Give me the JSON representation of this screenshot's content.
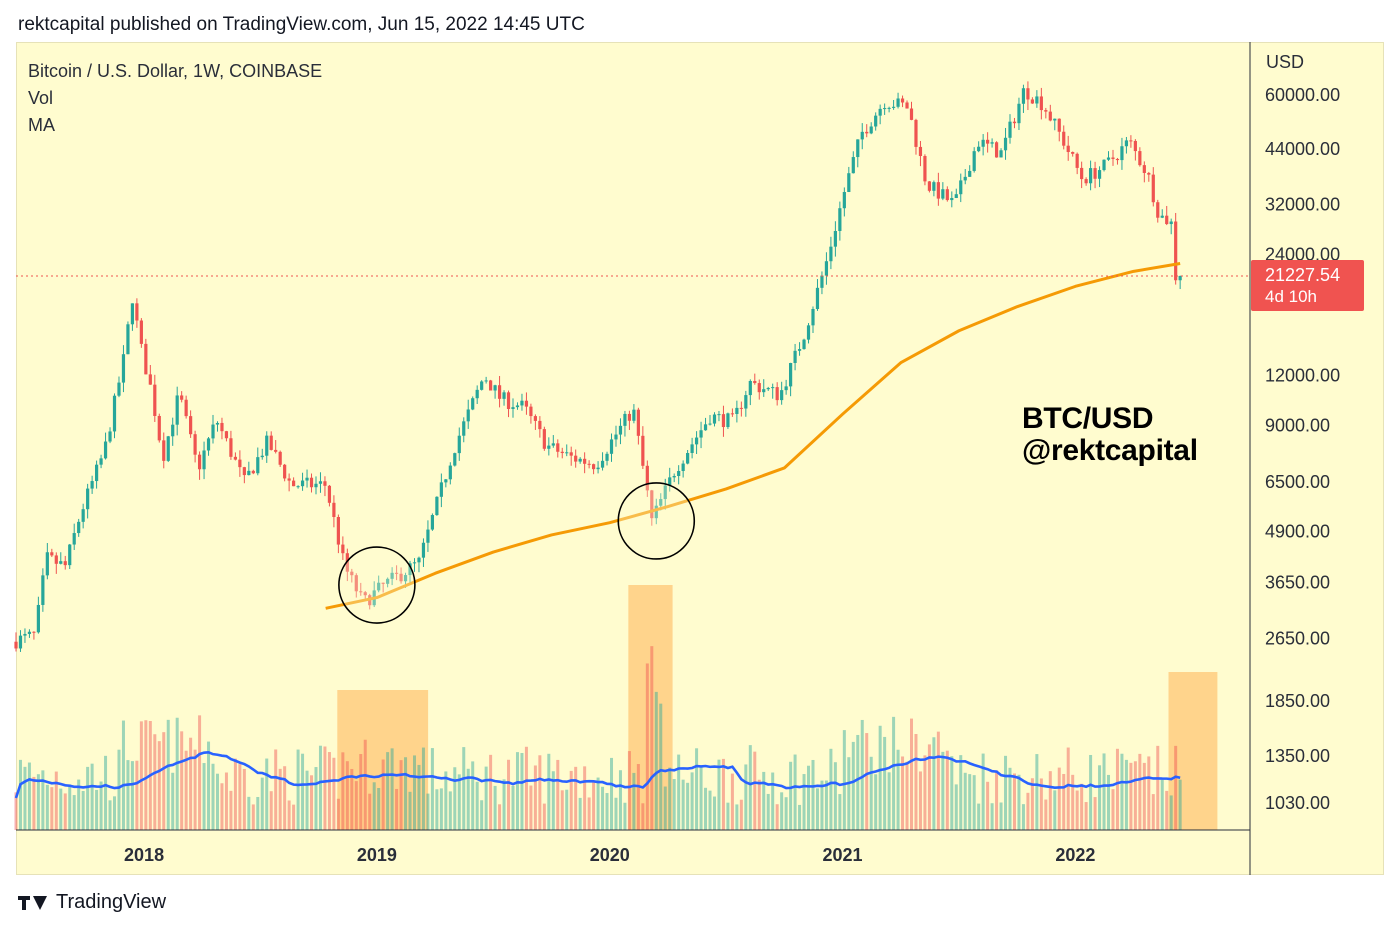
{
  "header": {
    "publish_line": "rektcapital published on TradingView.com, Jun 15, 2022 14:45 UTC"
  },
  "legend": {
    "symbol": "Bitcoin / U.S. Dollar, 1W, COINBASE",
    "vol": "Vol",
    "ma": "MA"
  },
  "watermark": {
    "line1": "BTC/USD",
    "line2": "@rektcapital"
  },
  "price_axis": {
    "currency": "USD"
  },
  "price_tag": {
    "price": "21227.54",
    "countdown": "4d 10h"
  },
  "footer": {
    "brand": "TradingView"
  },
  "colors": {
    "background": "#fffccf",
    "up": "#26a69a",
    "down": "#ef5350",
    "ma_line": "#f59a05",
    "vol_ma": "#2962ff",
    "highlight": "#ffcc80",
    "price_tag": "#f05350"
  },
  "chart_data": {
    "type": "candlestick",
    "x_axis": {
      "tick_labels": [
        "2018",
        "2019",
        "2020",
        "2021",
        "2022"
      ]
    },
    "y_axis": {
      "scale": "log",
      "tick_labels": [
        "60000.00",
        "44000.00",
        "32000.00",
        "24000.00",
        "12000.00",
        "9000.00",
        "6500.00",
        "4900.00",
        "3650.00",
        "2650.00",
        "1850.00",
        "1350.00",
        "1030.00"
      ],
      "tick_values": [
        60000,
        44000,
        32000,
        24000,
        12000,
        9000,
        6500,
        4900,
        3650,
        2650,
        1850,
        1350,
        1030
      ]
    },
    "last_price": 21227.54,
    "price_path": [
      {
        "date": "2017.45",
        "price": 2600
      },
      {
        "date": "2017.55",
        "price": 2700
      },
      {
        "date": "2017.6",
        "price": 4200
      },
      {
        "date": "2017.68",
        "price": 4000
      },
      {
        "date": "2017.75",
        "price": 5500
      },
      {
        "date": "2017.85",
        "price": 7800
      },
      {
        "date": "2017.93",
        "price": 13000
      },
      {
        "date": "2017.97",
        "price": 19000
      },
      {
        "date": "2018.0",
        "price": 14500
      },
      {
        "date": "2018.05",
        "price": 11000
      },
      {
        "date": "2018.1",
        "price": 7500
      },
      {
        "date": "2018.17",
        "price": 10800
      },
      {
        "date": "2018.25",
        "price": 7000
      },
      {
        "date": "2018.33",
        "price": 9300
      },
      {
        "date": "2018.45",
        "price": 6500
      },
      {
        "date": "2018.55",
        "price": 8200
      },
      {
        "date": "2018.65",
        "price": 6400
      },
      {
        "date": "2018.8",
        "price": 6400
      },
      {
        "date": "2018.88",
        "price": 4000
      },
      {
        "date": "2018.96",
        "price": 3250
      },
      {
        "date": "2019.05",
        "price": 3600
      },
      {
        "date": "2019.2",
        "price": 4100
      },
      {
        "date": "2019.35",
        "price": 7900
      },
      {
        "date": "2019.48",
        "price": 12000
      },
      {
        "date": "2019.55",
        "price": 10500
      },
      {
        "date": "2019.65",
        "price": 10000
      },
      {
        "date": "2019.75",
        "price": 8000
      },
      {
        "date": "2019.85",
        "price": 7500
      },
      {
        "date": "2019.96",
        "price": 7200
      },
      {
        "date": "2020.12",
        "price": 9900
      },
      {
        "date": "2020.2",
        "price": 5200
      },
      {
        "date": "2020.3",
        "price": 7000
      },
      {
        "date": "2020.45",
        "price": 9500
      },
      {
        "date": "2020.55",
        "price": 9200
      },
      {
        "date": "2020.62",
        "price": 11500
      },
      {
        "date": "2020.75",
        "price": 10700
      },
      {
        "date": "2020.85",
        "price": 15000
      },
      {
        "date": "2020.95",
        "price": 23000
      },
      {
        "date": "2021.03",
        "price": 35000
      },
      {
        "date": "2021.1",
        "price": 48000
      },
      {
        "date": "2021.2",
        "price": 58000
      },
      {
        "date": "2021.3",
        "price": 56000
      },
      {
        "date": "2021.38",
        "price": 36000
      },
      {
        "date": "2021.5",
        "price": 32000
      },
      {
        "date": "2021.6",
        "price": 46000
      },
      {
        "date": "2021.7",
        "price": 43000
      },
      {
        "date": "2021.8",
        "price": 62000
      },
      {
        "date": "2021.88",
        "price": 57000
      },
      {
        "date": "2021.96",
        "price": 47000
      },
      {
        "date": "2022.05",
        "price": 37000
      },
      {
        "date": "2022.15",
        "price": 40000
      },
      {
        "date": "2022.25",
        "price": 46000
      },
      {
        "date": "2022.33",
        "price": 38000
      },
      {
        "date": "2022.38",
        "price": 30000
      },
      {
        "date": "2022.43",
        "price": 29000
      },
      {
        "date": "2022.45",
        "price": 21227.54
      }
    ],
    "ma_line": [
      {
        "date": "2018.78",
        "price": 3150
      },
      {
        "date": "2019.0",
        "price": 3350
      },
      {
        "date": "2019.25",
        "price": 3850
      },
      {
        "date": "2019.5",
        "price": 4350
      },
      {
        "date": "2019.75",
        "price": 4800
      },
      {
        "date": "2020.0",
        "price": 5150
      },
      {
        "date": "2020.25",
        "price": 5650
      },
      {
        "date": "2020.5",
        "price": 6250
      },
      {
        "date": "2020.75",
        "price": 7050
      },
      {
        "date": "2021.0",
        "price": 9600
      },
      {
        "date": "2021.25",
        "price": 12900
      },
      {
        "date": "2021.5",
        "price": 15500
      },
      {
        "date": "2021.75",
        "price": 17800
      },
      {
        "date": "2022.0",
        "price": 20000
      },
      {
        "date": "2022.25",
        "price": 21800
      },
      {
        "date": "2022.45",
        "price": 22800
      }
    ],
    "annotations": [
      {
        "kind": "circle",
        "date": "2019.0",
        "price": 3600
      },
      {
        "kind": "circle",
        "date": "2020.2",
        "price": 5200
      }
    ],
    "volume_highlights": [
      {
        "from": "2018.83",
        "to": "2019.22"
      },
      {
        "from": "2020.08",
        "to": "2020.27"
      },
      {
        "from": "2022.4",
        "to": "2022.61"
      }
    ]
  }
}
